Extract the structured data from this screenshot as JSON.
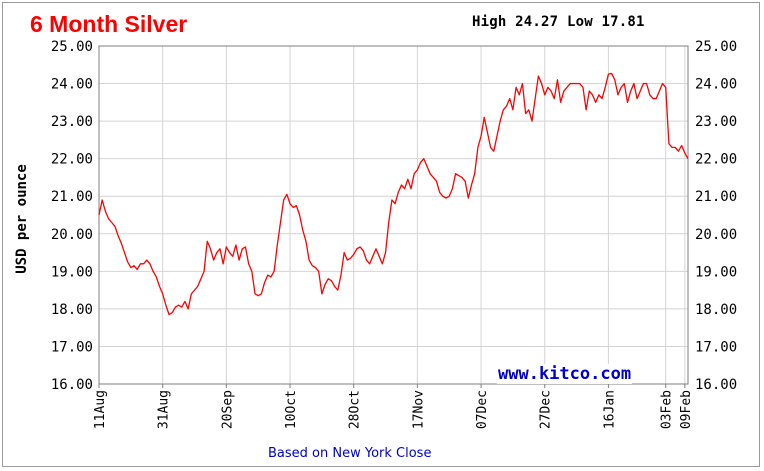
{
  "chart_data": {
    "type": "line",
    "title": "6 Month Silver",
    "high_label": "High",
    "high_value": "24.27",
    "low_label": "Low",
    "low_value": "17.81",
    "ylabel": "USD per ounce",
    "xlabel": "",
    "footer_note": "Based on New York Close",
    "watermark": "www.kitco.com",
    "ylim": [
      16.0,
      25.0
    ],
    "y_ticks": [
      "16.00",
      "17.00",
      "18.00",
      "19.00",
      "20.00",
      "21.00",
      "22.00",
      "23.00",
      "24.00",
      "25.00"
    ],
    "x_tick_labels": [
      "11Aug",
      "31Aug",
      "20Sep",
      "10Oct",
      "28Oct",
      "17Nov",
      "07Dec",
      "27Dec",
      "16Jan",
      "03Feb",
      "09Feb"
    ],
    "x_tick_index": [
      0,
      20,
      40,
      60,
      80,
      100,
      120,
      140,
      160,
      178,
      184
    ],
    "line_color": "#ff0000",
    "grid": true,
    "series": [
      {
        "values": [
          20.5,
          20.9,
          20.6,
          20.4,
          20.3,
          20.2,
          19.95,
          19.75,
          19.5,
          19.25,
          19.1,
          19.15,
          19.05,
          19.2,
          19.2,
          19.3,
          19.2,
          19.0,
          18.85,
          18.6,
          18.4,
          18.1,
          17.85,
          17.9,
          18.05,
          18.1,
          18.05,
          18.2,
          18.0,
          18.4,
          18.5,
          18.6,
          18.8,
          19.0,
          19.8,
          19.6,
          19.3,
          19.5,
          19.6,
          19.2,
          19.65,
          19.5,
          19.4,
          19.7,
          19.3,
          19.6,
          19.65,
          19.2,
          19.0,
          18.4,
          18.35,
          18.4,
          18.7,
          18.9,
          18.85,
          19.0,
          19.7,
          20.3,
          20.9,
          21.05,
          20.8,
          20.7,
          20.75,
          20.5,
          20.1,
          19.8,
          19.3,
          19.15,
          19.1,
          19.0,
          18.4,
          18.65,
          18.8,
          18.75,
          18.6,
          18.5,
          18.9,
          19.5,
          19.3,
          19.35,
          19.45,
          19.6,
          19.65,
          19.55,
          19.3,
          19.2,
          19.4,
          19.6,
          19.4,
          19.2,
          19.5,
          20.3,
          20.9,
          20.8,
          21.1,
          21.3,
          21.2,
          21.45,
          21.2,
          21.6,
          21.7,
          21.9,
          22.0,
          21.8,
          21.6,
          21.5,
          21.4,
          21.1,
          21.0,
          20.95,
          21.0,
          21.2,
          21.6,
          21.55,
          21.5,
          21.4,
          20.95,
          21.3,
          21.6,
          22.3,
          22.6,
          23.1,
          22.7,
          22.3,
          22.2,
          22.6,
          23.0,
          23.3,
          23.4,
          23.6,
          23.3,
          23.9,
          23.7,
          24.0,
          23.2,
          23.3,
          23.0,
          23.6,
          24.2,
          24.0,
          23.7,
          23.9,
          23.8,
          23.6,
          24.1,
          23.5,
          23.8,
          23.9,
          24.0,
          24.0,
          24.0,
          24.0,
          23.9,
          23.3,
          23.8,
          23.7,
          23.5,
          23.7,
          23.6,
          23.9,
          24.25,
          24.27,
          24.1,
          23.7,
          23.9,
          24.0,
          23.5,
          23.8,
          24.0,
          23.6,
          23.8,
          24.0,
          24.0,
          23.7,
          23.6,
          23.6,
          23.8,
          24.0,
          23.9,
          22.4,
          22.3,
          22.3,
          22.2,
          22.35,
          22.15,
          22.0
        ]
      }
    ]
  }
}
